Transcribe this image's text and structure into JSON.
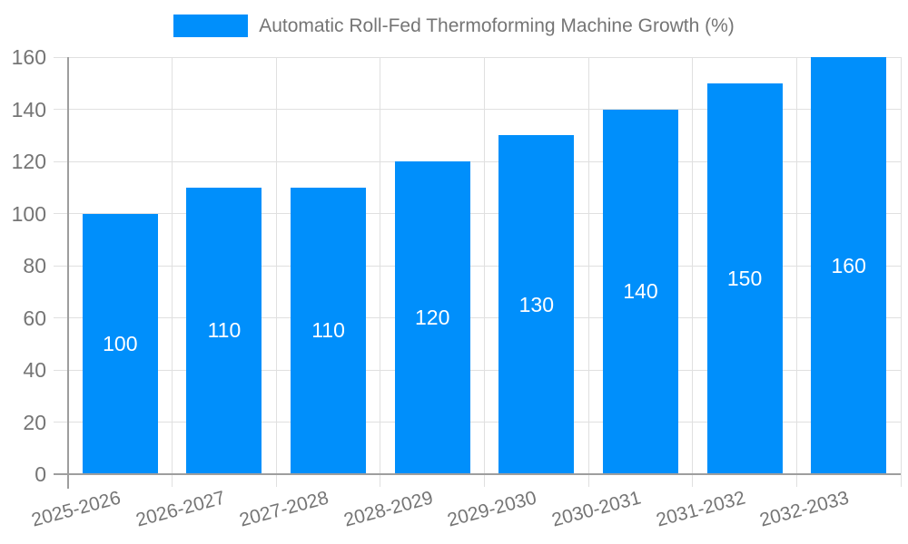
{
  "chart_data": {
    "type": "bar",
    "legend_label": "Automatic Roll-Fed Thermoforming Machine Growth (%)",
    "legend_position": "top",
    "categories": [
      "2025-2026",
      "2026-2027",
      "2027-2028",
      "2028-2029",
      "2029-2030",
      "2030-2031",
      "2031-2032",
      "2032-2033"
    ],
    "values": [
      100,
      110,
      110,
      120,
      130,
      140,
      150,
      160
    ],
    "y_ticks": [
      0,
      20,
      40,
      60,
      80,
      100,
      120,
      140,
      160
    ],
    "ylim": [
      0,
      160
    ],
    "xlabel": "",
    "ylabel": "",
    "grid": true,
    "bar_color": "#008FFB",
    "grid_color": "#e0e0e0",
    "axis_line_color": "#9e9e9e",
    "axis_text_color": "#757575",
    "value_label_color": "#ffffff",
    "background_color": "#ffffff"
  }
}
